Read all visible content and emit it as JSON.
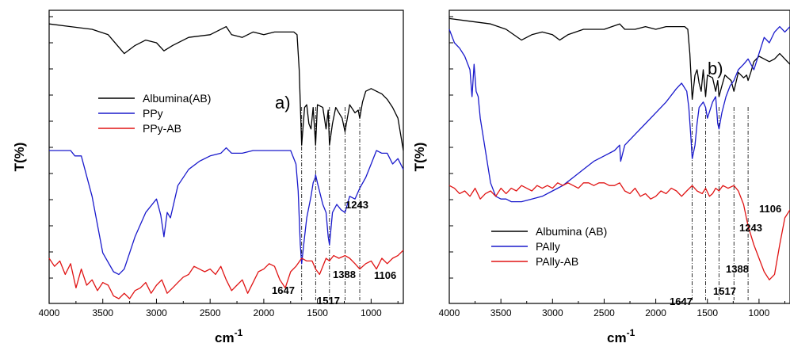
{
  "chart_data": [
    {
      "type": "line",
      "panel_label": "a)",
      "xlabel": "cm",
      "xlabel_sup": "-1",
      "ylabel": "T(%)",
      "xlim": [
        4000,
        700
      ],
      "x_reversed": true,
      "xticks": [
        4000,
        3500,
        3000,
        2500,
        2000,
        1500,
        1000
      ],
      "xtick_labels": [
        "4000",
        "3500",
        "3000",
        "2500",
        "2000",
        "1500",
        "1000"
      ],
      "legend": [
        "Albumina(AB)",
        "PPy",
        "PPy-AB"
      ],
      "colors": {
        "Albumina(AB)": "#000000",
        "PPy": "#1a1acc",
        "PPy-AB": "#e01414"
      },
      "vlines": [
        1647,
        1517,
        1388,
        1243,
        1106
      ],
      "annotations": [
        {
          "text": "1647",
          "x": 1647
        },
        {
          "text": "1517",
          "x": 1517
        },
        {
          "text": "1388",
          "x": 1388
        },
        {
          "text": "1243",
          "x": 1243
        },
        {
          "text": "1106",
          "x": 1106
        }
      ],
      "series": [
        {
          "name": "Albumina(AB)",
          "x": [
            4000,
            3800,
            3600,
            3450,
            3300,
            3200,
            3100,
            3000,
            2930,
            2850,
            2700,
            2500,
            2350,
            2300,
            2200,
            2100,
            2000,
            1900,
            1800,
            1720,
            1690,
            1670,
            1647,
            1620,
            1600,
            1580,
            1560,
            1540,
            1517,
            1500,
            1450,
            1420,
            1400,
            1388,
            1360,
            1330,
            1300,
            1270,
            1243,
            1200,
            1150,
            1120,
            1106,
            1080,
            1050,
            1000,
            950,
            900,
            850,
            800,
            750,
            700
          ],
          "y": [
            0.97,
            0.96,
            0.95,
            0.93,
            0.86,
            0.89,
            0.91,
            0.9,
            0.87,
            0.89,
            0.92,
            0.93,
            0.96,
            0.93,
            0.92,
            0.94,
            0.93,
            0.94,
            0.94,
            0.94,
            0.93,
            0.8,
            0.52,
            0.66,
            0.67,
            0.6,
            0.58,
            0.66,
            0.52,
            0.67,
            0.66,
            0.58,
            0.65,
            0.52,
            0.6,
            0.66,
            0.64,
            0.62,
            0.57,
            0.67,
            0.64,
            0.65,
            0.62,
            0.68,
            0.72,
            0.73,
            0.72,
            0.71,
            0.69,
            0.66,
            0.62,
            0.5
          ]
        },
        {
          "name": "PPy",
          "x": [
            4000,
            3800,
            3760,
            3700,
            3600,
            3500,
            3400,
            3350,
            3300,
            3200,
            3100,
            3000,
            2960,
            2930,
            2900,
            2870,
            2800,
            2700,
            2600,
            2500,
            2400,
            2350,
            2300,
            2200,
            2100,
            2000,
            1900,
            1800,
            1750,
            1700,
            1680,
            1660,
            1647,
            1620,
            1600,
            1560,
            1540,
            1520,
            1517,
            1500,
            1450,
            1420,
            1400,
            1388,
            1360,
            1320,
            1280,
            1243,
            1200,
            1150,
            1106,
            1050,
            1000,
            950,
            900,
            850,
            800,
            750,
            700
          ],
          "y": [
            0.5,
            0.5,
            0.48,
            0.48,
            0.33,
            0.12,
            0.05,
            0.04,
            0.06,
            0.18,
            0.27,
            0.32,
            0.26,
            0.18,
            0.27,
            0.25,
            0.37,
            0.43,
            0.46,
            0.48,
            0.49,
            0.51,
            0.49,
            0.49,
            0.5,
            0.5,
            0.5,
            0.5,
            0.5,
            0.45,
            0.35,
            0.15,
            0.08,
            0.18,
            0.25,
            0.33,
            0.38,
            0.4,
            0.41,
            0.38,
            0.3,
            0.27,
            0.18,
            0.15,
            0.27,
            0.3,
            0.28,
            0.27,
            0.33,
            0.32,
            0.36,
            0.4,
            0.45,
            0.5,
            0.49,
            0.49,
            0.45,
            0.47,
            0.43
          ]
        },
        {
          "name": "PPy-AB",
          "x": [
            4000,
            3950,
            3900,
            3850,
            3800,
            3750,
            3700,
            3650,
            3600,
            3550,
            3500,
            3450,
            3400,
            3350,
            3300,
            3250,
            3200,
            3150,
            3100,
            3050,
            3000,
            2950,
            2900,
            2850,
            2800,
            2750,
            2700,
            2650,
            2600,
            2550,
            2500,
            2450,
            2400,
            2350,
            2300,
            2250,
            2200,
            2150,
            2100,
            2050,
            2000,
            1950,
            1900,
            1850,
            1800,
            1750,
            1700,
            1647,
            1600,
            1550,
            1517,
            1480,
            1450,
            1420,
            1388,
            1350,
            1300,
            1243,
            1200,
            1150,
            1106,
            1050,
            1000,
            950,
            900,
            850,
            800,
            750,
            700
          ],
          "y": [
            0.1,
            0.07,
            0.09,
            0.04,
            0.08,
            -0.01,
            0.06,
            0.0,
            0.02,
            -0.02,
            0.01,
            0.0,
            -0.04,
            -0.05,
            -0.03,
            -0.05,
            -0.02,
            -0.01,
            0.01,
            -0.03,
            0.0,
            0.02,
            -0.03,
            -0.01,
            0.01,
            0.03,
            0.04,
            0.07,
            0.06,
            0.05,
            0.06,
            0.04,
            0.07,
            0.02,
            -0.02,
            0.0,
            0.02,
            -0.03,
            0.01,
            0.05,
            0.06,
            0.08,
            0.07,
            0.02,
            -0.01,
            0.05,
            0.07,
            0.1,
            0.09,
            0.09,
            0.06,
            0.04,
            0.07,
            0.1,
            0.09,
            0.11,
            0.1,
            0.11,
            0.1,
            0.08,
            0.06,
            0.08,
            0.09,
            0.06,
            0.1,
            0.08,
            0.1,
            0.11,
            0.13
          ]
        }
      ]
    },
    {
      "type": "line",
      "panel_label": "b)",
      "xlabel": "cm",
      "xlabel_sup": "-1",
      "ylabel": "T(%)",
      "xlim": [
        4000,
        700
      ],
      "x_reversed": true,
      "xticks": [
        4000,
        3500,
        3000,
        2500,
        2000,
        1500,
        1000
      ],
      "xtick_labels": [
        "4000",
        "3500",
        "3000",
        "2500",
        "2000",
        "1500",
        "1000"
      ],
      "legend": [
        "Albumina (AB)",
        "PAlly",
        "PAlly-AB"
      ],
      "colors": {
        "Albumina (AB)": "#000000",
        "PAlly": "#1a1acc",
        "PAlly-AB": "#e01414"
      },
      "vlines": [
        1647,
        1517,
        1388,
        1243,
        1106
      ],
      "annotations": [
        {
          "text": "1647",
          "x": 1647
        },
        {
          "text": "1517",
          "x": 1517
        },
        {
          "text": "1388",
          "x": 1388
        },
        {
          "text": "1243",
          "x": 1243
        },
        {
          "text": "1106",
          "x": 1106
        }
      ],
      "series": [
        {
          "name": "Albumina (AB)",
          "x": [
            4000,
            3800,
            3600,
            3450,
            3300,
            3200,
            3100,
            3000,
            2930,
            2850,
            2700,
            2500,
            2350,
            2300,
            2200,
            2100,
            2000,
            1900,
            1800,
            1720,
            1690,
            1670,
            1647,
            1620,
            1600,
            1580,
            1560,
            1540,
            1517,
            1500,
            1450,
            1420,
            1400,
            1388,
            1360,
            1330,
            1300,
            1270,
            1243,
            1200,
            1150,
            1120,
            1106,
            1080,
            1050,
            1000,
            950,
            900,
            850,
            800,
            750,
            700
          ],
          "y": [
            0.99,
            0.98,
            0.97,
            0.95,
            0.91,
            0.93,
            0.94,
            0.93,
            0.91,
            0.93,
            0.95,
            0.95,
            0.97,
            0.95,
            0.95,
            0.96,
            0.95,
            0.96,
            0.96,
            0.96,
            0.95,
            0.86,
            0.69,
            0.78,
            0.8,
            0.75,
            0.72,
            0.8,
            0.7,
            0.78,
            0.77,
            0.72,
            0.76,
            0.7,
            0.74,
            0.78,
            0.77,
            0.76,
            0.72,
            0.79,
            0.77,
            0.78,
            0.76,
            0.79,
            0.83,
            0.85,
            0.84,
            0.83,
            0.84,
            0.86,
            0.84,
            0.82
          ]
        },
        {
          "name": "PAlly",
          "x": [
            4000,
            3950,
            3900,
            3850,
            3800,
            3780,
            3760,
            3740,
            3720,
            3700,
            3650,
            3600,
            3550,
            3500,
            3450,
            3400,
            3300,
            3200,
            3100,
            3000,
            2900,
            2800,
            2700,
            2600,
            2500,
            2400,
            2350,
            2340,
            2300,
            2200,
            2100,
            2000,
            1900,
            1800,
            1750,
            1700,
            1680,
            1660,
            1647,
            1620,
            1600,
            1580,
            1540,
            1517,
            1500,
            1450,
            1420,
            1400,
            1388,
            1360,
            1320,
            1280,
            1243,
            1200,
            1150,
            1106,
            1050,
            1000,
            950,
            900,
            850,
            800,
            750,
            700
          ],
          "y": [
            0.95,
            0.9,
            0.88,
            0.85,
            0.8,
            0.7,
            0.82,
            0.72,
            0.7,
            0.62,
            0.5,
            0.38,
            0.33,
            0.32,
            0.32,
            0.31,
            0.31,
            0.32,
            0.33,
            0.35,
            0.37,
            0.4,
            0.43,
            0.46,
            0.48,
            0.5,
            0.52,
            0.46,
            0.52,
            0.56,
            0.6,
            0.64,
            0.68,
            0.73,
            0.75,
            0.72,
            0.66,
            0.55,
            0.47,
            0.52,
            0.6,
            0.66,
            0.68,
            0.66,
            0.62,
            0.68,
            0.7,
            0.6,
            0.58,
            0.64,
            0.7,
            0.74,
            0.76,
            0.8,
            0.82,
            0.84,
            0.8,
            0.86,
            0.92,
            0.9,
            0.94,
            0.96,
            0.94,
            0.96
          ]
        },
        {
          "name": "PAlly-AB",
          "x": [
            4000,
            3950,
            3900,
            3850,
            3800,
            3750,
            3700,
            3650,
            3600,
            3550,
            3500,
            3450,
            3400,
            3350,
            3300,
            3250,
            3200,
            3150,
            3100,
            3050,
            3000,
            2950,
            2900,
            2850,
            2800,
            2750,
            2700,
            2650,
            2600,
            2550,
            2500,
            2450,
            2400,
            2350,
            2300,
            2250,
            2200,
            2150,
            2100,
            2050,
            2000,
            1950,
            1900,
            1850,
            1800,
            1750,
            1700,
            1647,
            1600,
            1550,
            1517,
            1480,
            1450,
            1420,
            1388,
            1350,
            1300,
            1243,
            1200,
            1150,
            1106,
            1050,
            1000,
            950,
            900,
            850,
            800,
            750,
            700
          ],
          "y": [
            0.37,
            0.36,
            0.34,
            0.35,
            0.33,
            0.36,
            0.32,
            0.34,
            0.35,
            0.33,
            0.36,
            0.34,
            0.36,
            0.35,
            0.37,
            0.36,
            0.35,
            0.37,
            0.36,
            0.37,
            0.36,
            0.38,
            0.37,
            0.38,
            0.37,
            0.36,
            0.38,
            0.38,
            0.37,
            0.38,
            0.38,
            0.37,
            0.37,
            0.38,
            0.35,
            0.34,
            0.36,
            0.33,
            0.34,
            0.32,
            0.33,
            0.35,
            0.34,
            0.36,
            0.35,
            0.33,
            0.35,
            0.37,
            0.35,
            0.34,
            0.36,
            0.33,
            0.34,
            0.36,
            0.35,
            0.37,
            0.36,
            0.37,
            0.35,
            0.3,
            0.22,
            0.15,
            0.1,
            0.05,
            0.02,
            0.04,
            0.15,
            0.25,
            0.28
          ]
        }
      ]
    }
  ]
}
